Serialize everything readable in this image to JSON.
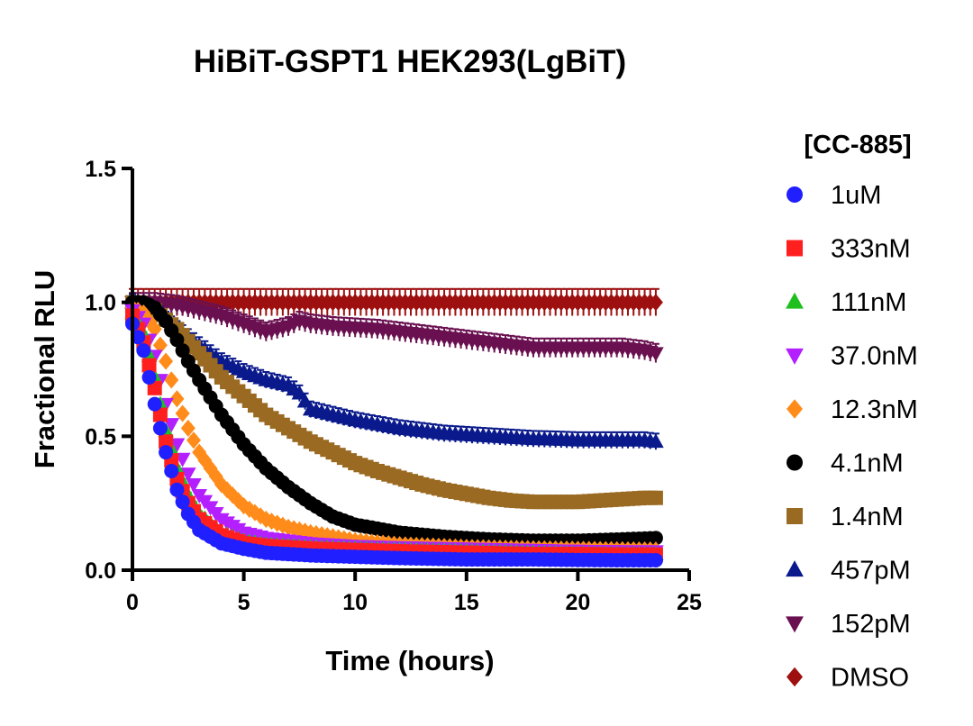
{
  "chart_data": {
    "type": "scatter",
    "title": "HiBiT-GSPT1 HEK293(LgBiT)",
    "xlabel": "Time  (hours)",
    "ylabel": "Fractional RLU",
    "xlim": [
      0,
      25
    ],
    "ylim": [
      0,
      1.5
    ],
    "x_ticks": [
      0,
      5,
      10,
      15,
      20,
      25
    ],
    "y_ticks": [
      0.0,
      0.5,
      1.0,
      1.5
    ],
    "x_tick_labels": [
      "0",
      "5",
      "10",
      "15",
      "20",
      "25"
    ],
    "y_tick_labels": [
      "0.0",
      "0.5",
      "1.0",
      "1.5"
    ],
    "grid": false,
    "error_bars": true,
    "legend": {
      "title": "[CC-885]",
      "placement": "right"
    },
    "series": [
      {
        "name": "1uM",
        "marker": "circle",
        "color": "#1f1fff",
        "x": [
          0,
          0.5,
          1,
          1.5,
          2,
          2.5,
          3,
          4,
          5,
          6,
          8,
          10,
          12,
          15,
          18,
          20,
          22,
          23.5
        ],
        "values": [
          0.92,
          0.82,
          0.62,
          0.44,
          0.3,
          0.21,
          0.15,
          0.1,
          0.08,
          0.065,
          0.055,
          0.05,
          0.045,
          0.04,
          0.04,
          0.038,
          0.037,
          0.037
        ],
        "error": 0.01
      },
      {
        "name": "333nM",
        "marker": "square",
        "color": "#ff1f1f",
        "x": [
          0,
          0.5,
          1,
          1.5,
          2,
          2.5,
          3,
          4,
          5,
          6,
          8,
          10,
          12,
          15,
          18,
          20,
          22,
          23.5
        ],
        "values": [
          0.95,
          0.85,
          0.68,
          0.48,
          0.34,
          0.25,
          0.19,
          0.13,
          0.1,
          0.09,
          0.08,
          0.075,
          0.07,
          0.065,
          0.06,
          0.06,
          0.058,
          0.058
        ],
        "error": 0.01
      },
      {
        "name": "111nM",
        "marker": "triangle-up",
        "color": "#1fbf1f",
        "x": [
          0,
          0.5,
          1,
          1.5,
          2,
          2.5,
          3,
          4,
          5,
          6,
          8,
          10,
          12,
          15,
          18,
          20,
          22,
          23.5
        ],
        "values": [
          0.96,
          0.88,
          0.72,
          0.52,
          0.38,
          0.28,
          0.21,
          0.14,
          0.11,
          0.095,
          0.085,
          0.08,
          0.075,
          0.07,
          0.065,
          0.062,
          0.06,
          0.06
        ],
        "error": 0.01
      },
      {
        "name": "37.0nM",
        "marker": "triangle-down",
        "color": "#b31fff",
        "x": [
          0,
          0.5,
          1,
          1.5,
          2,
          2.5,
          3,
          4,
          5,
          6,
          8,
          10,
          12,
          15,
          18,
          20,
          22,
          23.5
        ],
        "values": [
          0.97,
          0.92,
          0.8,
          0.62,
          0.47,
          0.36,
          0.28,
          0.19,
          0.14,
          0.12,
          0.1,
          0.09,
          0.085,
          0.08,
          0.075,
          0.072,
          0.07,
          0.07
        ],
        "error": 0.01
      },
      {
        "name": "12.3nM",
        "marker": "diamond",
        "color": "#ff8c1a",
        "x": [
          0,
          0.5,
          1,
          1.5,
          2,
          2.5,
          3,
          4,
          5,
          6,
          7,
          8,
          10,
          12,
          15,
          18,
          20,
          22,
          23.5
        ],
        "values": [
          0.98,
          0.96,
          0.9,
          0.78,
          0.64,
          0.53,
          0.44,
          0.32,
          0.24,
          0.19,
          0.16,
          0.14,
          0.11,
          0.095,
          0.085,
          0.08,
          0.078,
          0.076,
          0.075
        ],
        "error": 0.015
      },
      {
        "name": "4.1nM",
        "marker": "circle",
        "color": "#000000",
        "x": [
          0,
          0.5,
          1,
          1.5,
          2,
          2.5,
          3,
          4,
          5,
          6,
          7,
          8,
          9,
          10,
          12,
          14,
          16,
          18,
          20,
          22,
          23.5
        ],
        "values": [
          1.0,
          1.0,
          0.98,
          0.93,
          0.86,
          0.78,
          0.71,
          0.58,
          0.47,
          0.38,
          0.31,
          0.25,
          0.2,
          0.17,
          0.14,
          0.125,
          0.115,
          0.11,
          0.11,
          0.115,
          0.12
        ],
        "error": 0.02
      },
      {
        "name": "1.4nM",
        "marker": "square",
        "color": "#9a6a22",
        "x": [
          0,
          1,
          2,
          3,
          4,
          5,
          6,
          7,
          8,
          9,
          10,
          11,
          12,
          13,
          14,
          15,
          16,
          17,
          18,
          19,
          20,
          21,
          22,
          23,
          23.5
        ],
        "values": [
          1.0,
          0.97,
          0.9,
          0.81,
          0.72,
          0.65,
          0.58,
          0.53,
          0.48,
          0.44,
          0.4,
          0.37,
          0.345,
          0.32,
          0.3,
          0.285,
          0.27,
          0.26,
          0.255,
          0.255,
          0.255,
          0.26,
          0.265,
          0.27,
          0.27
        ],
        "error": 0.02
      },
      {
        "name": "457pM",
        "marker": "triangle-up",
        "color": "#0a1a8c",
        "x": [
          0,
          1,
          2,
          3,
          4,
          5,
          6,
          7,
          7.5,
          8,
          9,
          10,
          11,
          12,
          13,
          14,
          15,
          16,
          17,
          18,
          19,
          20,
          21,
          22,
          23,
          23.5
        ],
        "values": [
          1.0,
          0.97,
          0.9,
          0.84,
          0.78,
          0.74,
          0.71,
          0.69,
          0.66,
          0.6,
          0.58,
          0.56,
          0.545,
          0.53,
          0.52,
          0.51,
          0.505,
          0.5,
          0.495,
          0.49,
          0.488,
          0.485,
          0.485,
          0.485,
          0.485,
          0.48
        ],
        "error": 0.03
      },
      {
        "name": "152pM",
        "marker": "triangle-down",
        "color": "#6a1050",
        "x": [
          0,
          1,
          2,
          3,
          4,
          5,
          6,
          7,
          7.5,
          8,
          9,
          10,
          11,
          12,
          13,
          14,
          15,
          16,
          17,
          18,
          19,
          20,
          21,
          22,
          23,
          23.5
        ],
        "values": [
          1.0,
          1.0,
          0.99,
          0.97,
          0.95,
          0.92,
          0.89,
          0.91,
          0.93,
          0.92,
          0.91,
          0.905,
          0.9,
          0.89,
          0.88,
          0.87,
          0.86,
          0.85,
          0.84,
          0.83,
          0.83,
          0.83,
          0.83,
          0.83,
          0.82,
          0.81
        ],
        "error": 0.035
      },
      {
        "name": "DMSO",
        "marker": "diamond",
        "color": "#9e1010",
        "x": [
          0,
          1,
          2,
          3,
          4,
          5,
          6,
          7,
          8,
          9,
          10,
          11,
          12,
          13,
          14,
          15,
          16,
          17,
          18,
          19,
          20,
          21,
          22,
          23,
          23.5
        ],
        "values": [
          1.0,
          1.0,
          1.0,
          1.0,
          1.0,
          1.0,
          1.0,
          1.0,
          1.0,
          1.0,
          1.0,
          1.0,
          1.0,
          1.0,
          1.0,
          1.0,
          1.0,
          1.0,
          1.0,
          1.0,
          1.0,
          1.0,
          1.0,
          1.0,
          1.0
        ],
        "error": 0.05
      }
    ]
  }
}
